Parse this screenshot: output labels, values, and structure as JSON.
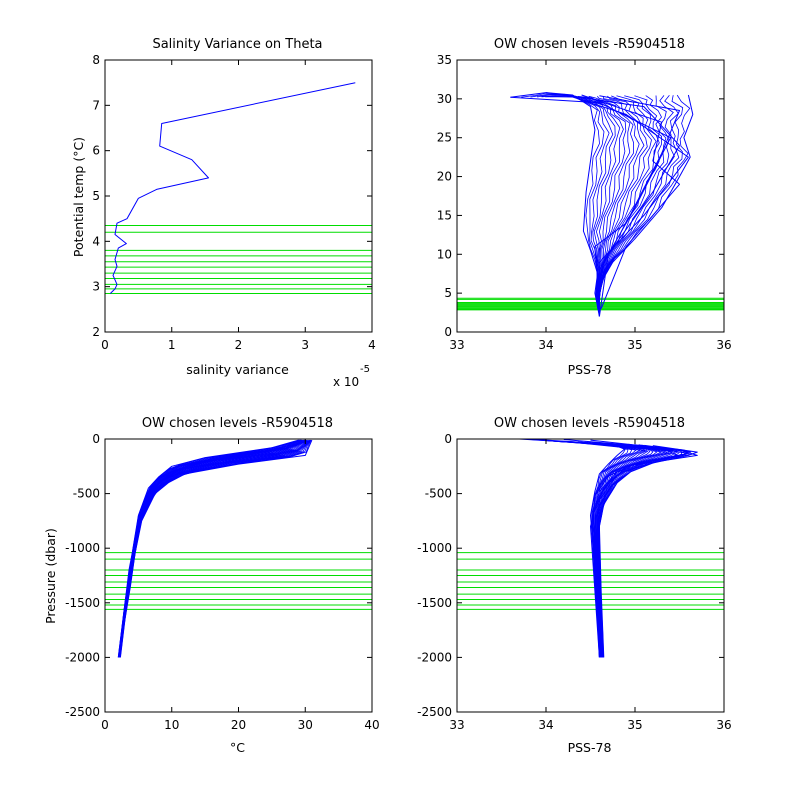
{
  "colors": {
    "series": "#0000FF",
    "levels": "#00DD00",
    "axes": "#000000",
    "background": "#FFFFFF"
  },
  "chart_data": [
    {
      "type": "line",
      "title": "Salinity Variance on Theta",
      "xlabel": "salinity variance",
      "ylabel": "Potential temp (°C)",
      "x_exponent_label": "x 10",
      "x_exponent": "-5",
      "xlim": [
        0,
        4
      ],
      "ylim": [
        2,
        8
      ],
      "xticks": [
        "0",
        "1",
        "2",
        "3",
        "4"
      ],
      "yticks": [
        "2",
        "3",
        "4",
        "5",
        "6",
        "7",
        "8"
      ],
      "grid": false,
      "series": [
        {
          "kind": "profile",
          "x": [
            3.75,
            0.85,
            0.82,
            1.3,
            1.55,
            0.78,
            0.5,
            0.33,
            0.18,
            0.15,
            0.32,
            0.2,
            0.15,
            0.18,
            0.12,
            0.18,
            0.15,
            0.08
          ],
          "y": [
            7.5,
            6.6,
            6.1,
            5.8,
            5.4,
            5.15,
            4.95,
            4.5,
            4.4,
            4.15,
            3.95,
            3.85,
            3.6,
            3.45,
            3.25,
            3.05,
            2.95,
            2.85
          ]
        }
      ],
      "hlines": [
        4.35,
        4.2,
        3.8,
        3.68,
        3.55,
        3.43,
        3.3,
        3.18,
        3.05,
        2.95,
        2.85
      ]
    },
    {
      "type": "line",
      "title": "OW chosen levels -R5904518",
      "xlabel": "PSS-78",
      "ylabel": "",
      "xlim": [
        33,
        36
      ],
      "ylim": [
        0,
        35
      ],
      "xticks": [
        "33",
        "34",
        "35",
        "36"
      ],
      "yticks": [
        "0",
        "5",
        "10",
        "15",
        "20",
        "25",
        "30",
        "35"
      ],
      "grid": false,
      "series": [
        {
          "kind": "envelope-left",
          "x": [
            33.6,
            34.0,
            34.3,
            34.5,
            34.55,
            34.5,
            34.45,
            34.42,
            34.5,
            34.58,
            34.55,
            34.6
          ],
          "y": [
            30.2,
            30.8,
            30.5,
            29.0,
            26.0,
            22.0,
            18.0,
            13.0,
            10.5,
            7.5,
            5.0,
            2.0
          ]
        },
        {
          "kind": "envelope-right",
          "x": [
            35.6,
            35.65,
            35.55,
            35.62,
            35.5,
            35.3,
            35.0,
            34.75,
            34.65,
            34.6
          ],
          "y": [
            30.5,
            28.0,
            25.0,
            22.5,
            20.0,
            16.0,
            12.0,
            9.0,
            7.0,
            5.0
          ]
        },
        {
          "kind": "profile",
          "x": [
            33.6,
            34.6,
            35.4,
            35.0,
            34.6,
            34.6
          ],
          "y": [
            30.2,
            29.5,
            25.0,
            16.0,
            8.0,
            2.0
          ]
        },
        {
          "kind": "profile",
          "x": [
            34.0,
            35.1,
            35.5,
            35.2,
            34.7,
            34.6
          ],
          "y": [
            30.8,
            29.0,
            24.0,
            18.0,
            10.0,
            2.0
          ]
        },
        {
          "kind": "profile",
          "x": [
            34.4,
            35.3,
            35.2,
            35.5,
            34.9,
            34.62
          ],
          "y": [
            30.5,
            27.0,
            22.0,
            19.0,
            11.0,
            3.0
          ]
        },
        {
          "kind": "profile",
          "x": [
            34.2,
            34.9,
            35.6,
            35.1,
            34.6,
            34.58
          ],
          "y": [
            30.6,
            28.0,
            22.5,
            15.0,
            9.0,
            3.0
          ]
        },
        {
          "kind": "profile",
          "x": [
            34.6,
            35.5,
            35.3,
            34.9,
            34.55,
            34.6
          ],
          "y": [
            30.4,
            28.5,
            23.0,
            14.0,
            11.0,
            4.0
          ]
        }
      ],
      "hlines": [
        4.35,
        4.2,
        3.8,
        3.68,
        3.55,
        3.43,
        3.3,
        3.18,
        3.05,
        2.95,
        2.85
      ]
    },
    {
      "type": "line",
      "title": "OW chosen levels -R5904518",
      "xlabel": "°C",
      "ylabel": "Pressure (dbar)",
      "xlim": [
        0,
        40
      ],
      "ylim": [
        -2500,
        0
      ],
      "xticks": [
        "0",
        "10",
        "20",
        "30",
        "40"
      ],
      "yticks": [
        "-2500",
        "-2000",
        "-1500",
        "-1000",
        "-500",
        "0"
      ],
      "grid": false,
      "series": [
        {
          "kind": "envelope-left",
          "x": [
            29.0,
            25.0,
            15.0,
            10.0,
            8.0,
            6.5,
            5.0,
            4.2,
            3.5,
            2.8,
            2.0
          ],
          "y": [
            -10,
            -80,
            -170,
            -250,
            -350,
            -450,
            -700,
            -1000,
            -1300,
            -1600,
            -2000
          ]
        },
        {
          "kind": "envelope-right",
          "x": [
            31.0,
            30.0,
            20.0,
            12.0,
            9.5,
            7.5,
            5.5,
            4.5,
            3.8,
            3.0,
            2.3
          ],
          "y": [
            -10,
            -150,
            -230,
            -320,
            -400,
            -500,
            -750,
            -1050,
            -1350,
            -1650,
            -2000
          ]
        },
        {
          "kind": "profile",
          "x": [
            30.5,
            24.0,
            16.0,
            11.0,
            8.5,
            6.5,
            5.0,
            3.6,
            2.8,
            2.1
          ],
          "y": [
            -20,
            -110,
            -180,
            -280,
            -380,
            -500,
            -750,
            -1200,
            -1600,
            -2000
          ]
        },
        {
          "kind": "profile",
          "x": [
            29.5,
            22.0,
            14.0,
            10.0,
            7.8,
            6.0,
            4.8,
            3.8,
            2.9,
            2.2
          ],
          "y": [
            -30,
            -140,
            -210,
            -300,
            -420,
            -560,
            -820,
            -1150,
            -1550,
            -2000
          ]
        },
        {
          "kind": "profile",
          "x": [
            30.0,
            27.0,
            18.0,
            12.0,
            9.0,
            7.0,
            5.2,
            4.0,
            3.0,
            2.0
          ],
          "y": [
            -15,
            -90,
            -170,
            -260,
            -360,
            -470,
            -700,
            -1100,
            -1500,
            -2000
          ]
        }
      ],
      "hlines": [
        -1040,
        -1100,
        -1200,
        -1250,
        -1310,
        -1360,
        -1420,
        -1470,
        -1520,
        -1560
      ]
    },
    {
      "type": "line",
      "title": "OW chosen levels -R5904518",
      "xlabel": "PSS-78",
      "ylabel": "",
      "xlim": [
        33,
        36
      ],
      "ylim": [
        -2500,
        0
      ],
      "xticks": [
        "33",
        "34",
        "35",
        "36"
      ],
      "yticks": [
        "-2500",
        "-2000",
        "-1500",
        "-1000",
        "-500",
        "0"
      ],
      "grid": false,
      "series": [
        {
          "kind": "envelope-left",
          "x": [
            33.7,
            34.3,
            34.9,
            34.8,
            34.7,
            34.6,
            34.55,
            34.5,
            34.52,
            34.55,
            34.58,
            34.6
          ],
          "y": [
            0,
            -30,
            -80,
            -150,
            -230,
            -320,
            -480,
            -700,
            -900,
            -1300,
            -1700,
            -2000
          ]
        },
        {
          "kind": "envelope-right",
          "x": [
            35.2,
            35.7,
            35.6,
            35.2,
            34.95,
            34.8,
            34.65,
            34.6,
            34.62,
            34.65
          ],
          "y": [
            -60,
            -120,
            -150,
            -220,
            -300,
            -400,
            -600,
            -800,
            -1400,
            -2000
          ]
        },
        {
          "kind": "profile",
          "x": [
            33.8,
            35.0,
            35.6,
            35.2,
            34.8,
            34.6,
            34.5,
            34.6
          ],
          "y": [
            0,
            -60,
            -130,
            -200,
            -300,
            -480,
            -800,
            -2000
          ]
        },
        {
          "kind": "profile",
          "x": [
            34.2,
            35.3,
            35.5,
            35.0,
            34.7,
            34.55,
            34.52,
            34.62
          ],
          "y": [
            -5,
            -80,
            -160,
            -230,
            -340,
            -520,
            -900,
            -2000
          ]
        },
        {
          "kind": "profile",
          "x": [
            34.5,
            35.5,
            35.7,
            34.9,
            34.75,
            34.6,
            34.55,
            34.6
          ],
          "y": [
            -10,
            -100,
            -150,
            -250,
            -380,
            -560,
            -1000,
            -2000
          ]
        }
      ],
      "hlines": [
        -1040,
        -1100,
        -1200,
        -1250,
        -1310,
        -1360,
        -1420,
        -1470,
        -1520,
        -1560
      ]
    }
  ]
}
